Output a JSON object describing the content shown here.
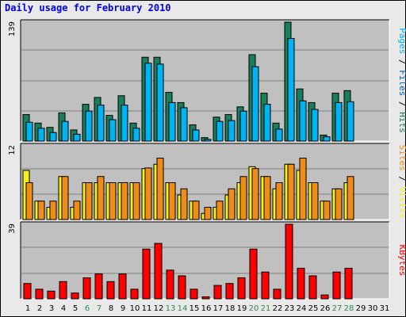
{
  "title": "Daily usage for February 2010",
  "colors": {
    "background": "#e9e9e9",
    "plot_background": "#c0c0c0",
    "pages": "#00b3f2",
    "files": "#0062b0",
    "hits": "#1a7e5c",
    "visits": "#f5f11e",
    "sites": "#f08c19",
    "kbytes": "#ff0000",
    "weekend_label": "#2d8a52",
    "weekday_label": "#000000",
    "title": "#0000ee"
  },
  "chart_data": [
    {
      "type": "bar",
      "title": "Daily usage for February 2010",
      "ylabel_parts": [
        "Pages",
        "Files",
        "Hits"
      ],
      "ymax_label": "139",
      "ylim": [
        0,
        139
      ],
      "categories": [
        "1",
        "2",
        "3",
        "4",
        "5",
        "6",
        "7",
        "8",
        "9",
        "10",
        "11",
        "12",
        "13",
        "14",
        "15",
        "16",
        "17",
        "18",
        "19",
        "20",
        "21",
        "22",
        "23",
        "24",
        "25",
        "26",
        "27",
        "28",
        "29",
        "30",
        "31"
      ],
      "series": [
        {
          "name": "Hits",
          "values": [
            31,
            21,
            16,
            33,
            13,
            43,
            51,
            30,
            53,
            21,
            98,
            98,
            57,
            45,
            19,
            4,
            28,
            31,
            40,
            101,
            56,
            21,
            139,
            61,
            45,
            7,
            56,
            59,
            0,
            0,
            0
          ]
        },
        {
          "name": "Pages",
          "values": [
            22,
            15,
            10,
            23,
            8,
            35,
            42,
            25,
            42,
            15,
            91,
            90,
            45,
            39,
            13,
            2,
            23,
            24,
            35,
            87,
            43,
            14,
            120,
            47,
            37,
            5,
            45,
            46,
            0,
            0,
            0
          ]
        }
      ]
    },
    {
      "type": "bar",
      "ylabel_parts": [
        "Sites",
        "Visits"
      ],
      "ymax_label": "12",
      "ylim": [
        0,
        12
      ],
      "categories": [
        "1",
        "2",
        "3",
        "4",
        "5",
        "6",
        "7",
        "8",
        "9",
        "10",
        "11",
        "12",
        "13",
        "14",
        "15",
        "16",
        "17",
        "18",
        "19",
        "20",
        "21",
        "22",
        "23",
        "24",
        "25",
        "26",
        "27",
        "28",
        "29",
        "30",
        "31"
      ],
      "series": [
        {
          "name": "Visits",
          "values": [
            8,
            3,
            2,
            7,
            2,
            6,
            6,
            6,
            6,
            6,
            8.3,
            9,
            6,
            4,
            3,
            1,
            2,
            4,
            6,
            8.6,
            7,
            5,
            9,
            8,
            6,
            3,
            5,
            6,
            0,
            0,
            0
          ]
        },
        {
          "name": "Sites",
          "values": [
            6,
            3,
            3,
            7,
            3,
            6,
            7,
            6,
            6,
            6,
            8.4,
            10,
            6,
            5,
            3,
            2,
            3,
            5,
            7,
            8.3,
            7,
            6,
            9,
            10,
            6,
            3,
            5,
            7,
            0,
            0,
            0
          ]
        }
      ]
    },
    {
      "type": "bar",
      "ylabel_parts": [
        "KBytes"
      ],
      "ymax_label": "39",
      "ylim": [
        0,
        39
      ],
      "categories": [
        "1",
        "2",
        "3",
        "4",
        "5",
        "6",
        "7",
        "8",
        "9",
        "10",
        "11",
        "12",
        "13",
        "14",
        "15",
        "16",
        "17",
        "18",
        "19",
        "20",
        "21",
        "22",
        "23",
        "24",
        "25",
        "26",
        "27",
        "28",
        "29",
        "30",
        "31"
      ],
      "series": [
        {
          "name": "KBytes",
          "values": [
            8,
            5,
            4,
            9,
            3,
            11,
            13,
            9,
            13,
            5,
            26,
            29,
            15,
            12,
            5,
            1,
            7,
            8,
            11,
            26,
            14,
            5,
            39,
            16,
            12,
            2,
            14,
            16,
            0,
            0,
            0
          ]
        }
      ]
    }
  ],
  "weekend_days": [
    6,
    7,
    13,
    14,
    20,
    21,
    27,
    28
  ]
}
